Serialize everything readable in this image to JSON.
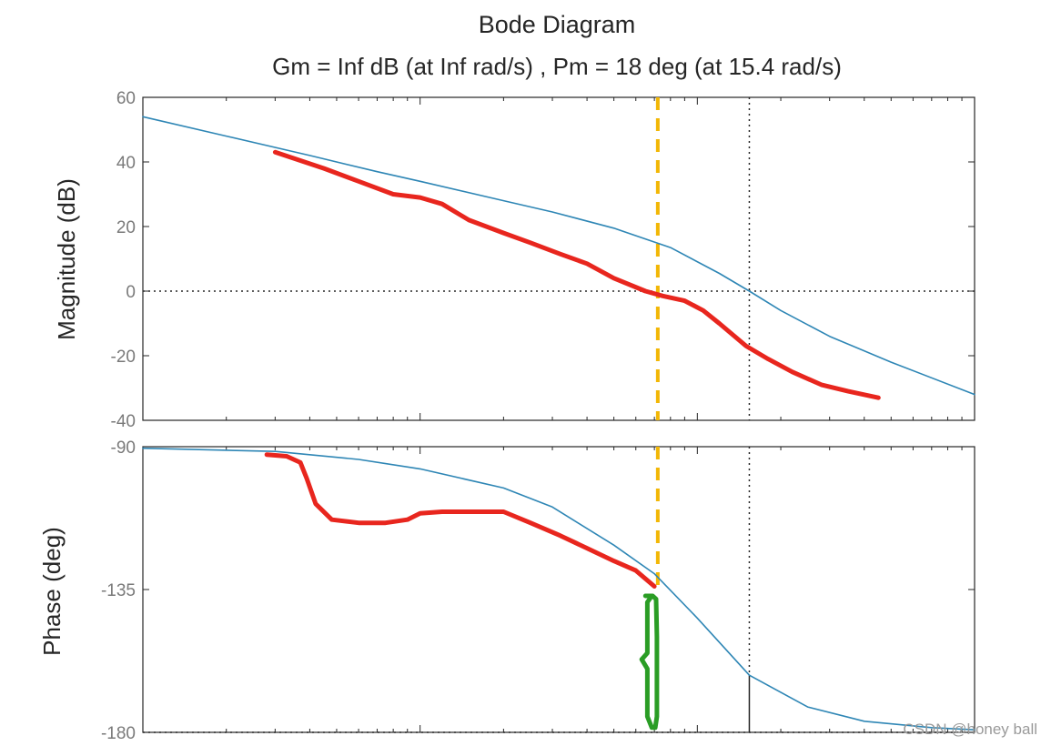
{
  "chart_data": [
    {
      "type": "line",
      "panel": "magnitude",
      "title": "Bode Diagram",
      "subtitle": "Gm = Inf dB (at Inf rad/s) ,  Pm = 18 deg (at 15.4 rad/s)",
      "xlabel": "",
      "ylabel": "Magnitude (dB)",
      "xscale": "log",
      "xlim": [
        0.1,
        100
      ],
      "ylim": [
        -40,
        60
      ],
      "yticks": [
        60,
        40,
        20,
        0,
        -20,
        -40
      ],
      "ytick_labels": [
        "60",
        "40",
        "20",
        "0",
        "-20",
        "-40"
      ],
      "series": [
        {
          "name": "Bode magnitude",
          "color": "#2e86b5",
          "x": [
            0.1,
            0.2,
            0.4,
            0.7,
            1,
            2,
            3,
            5,
            8,
            12,
            15.4,
            20,
            30,
            50,
            100
          ],
          "y": [
            54,
            48,
            42,
            37,
            34,
            28,
            24.5,
            19.5,
            13.5,
            5.5,
            0,
            -6,
            -14,
            -22,
            -32
          ]
        },
        {
          "name": "hand-drawn curve",
          "color": "#e8261e",
          "x": [
            0.3,
            0.45,
            0.6,
            0.8,
            1.0,
            1.2,
            1.5,
            2.0,
            2.5,
            3.2,
            4.0,
            5.0,
            6.5,
            7.5,
            9,
            10.5,
            12,
            15,
            18,
            22,
            28,
            35,
            45
          ],
          "y": [
            43,
            38,
            34,
            30,
            29,
            27,
            22,
            18,
            15,
            11.5,
            8.5,
            4,
            0,
            -1.5,
            -3,
            -6,
            -10,
            -17,
            -21,
            -25,
            -29,
            -31,
            -33
          ]
        }
      ],
      "annotations": [
        {
          "type": "hline",
          "y": 0,
          "style": "dotted",
          "color": "#262626"
        },
        {
          "type": "vline",
          "x": 15.4,
          "style": "dotted",
          "color": "#262626"
        },
        {
          "type": "vline",
          "x": 7.2,
          "style": "dashed",
          "color": "#f2b705"
        }
      ]
    },
    {
      "type": "line",
      "panel": "phase",
      "title": "",
      "xlabel": "",
      "ylabel": "Phase (deg)",
      "xscale": "log",
      "xlim": [
        0.1,
        100
      ],
      "ylim": [
        -180,
        -90
      ],
      "yticks": [
        -90,
        -135,
        -180
      ],
      "ytick_labels": [
        "-90",
        "-135",
        "-180"
      ],
      "series": [
        {
          "name": "Bode phase",
          "color": "#2e86b5",
          "x": [
            0.1,
            0.3,
            0.6,
            1,
            2,
            3,
            5,
            7,
            10,
            15.4,
            25,
            40,
            70,
            100
          ],
          "y": [
            -90.5,
            -91.5,
            -94,
            -97,
            -103,
            -109,
            -121,
            -130,
            -144,
            -162,
            -172,
            -176.5,
            -178.5,
            -179.2
          ]
        },
        {
          "name": "hand-drawn curve",
          "color": "#e8261e",
          "x": [
            0.28,
            0.33,
            0.37,
            0.39,
            0.42,
            0.48,
            0.6,
            0.75,
            0.9,
            1.0,
            1.2,
            1.5,
            2.0,
            2.5,
            3.2,
            4.0,
            5.0,
            6.0,
            7.0
          ],
          "y": [
            -92.5,
            -93,
            -95,
            -100,
            -108,
            -113,
            -114,
            -114,
            -113,
            -111,
            -110.5,
            -110.5,
            -110.5,
            -114,
            -118,
            -122,
            -126,
            -129,
            -134
          ]
        },
        {
          "name": "green bracket",
          "color": "#2a9d25",
          "x": [
            6.5,
            6.9,
            7.1,
            7.15,
            7.15,
            7.05,
            6.85,
            6.6,
            6.6,
            6.3,
            6.6,
            6.6,
            6.85
          ],
          "y": [
            -137,
            -137,
            -138,
            -150,
            -175,
            -178.5,
            -178.5,
            -175,
            -160,
            -157,
            -155,
            -139,
            -137
          ]
        }
      ],
      "annotations": [
        {
          "type": "hline",
          "y": -180,
          "style": "dotted",
          "color": "#262626"
        },
        {
          "type": "vline",
          "x": 15.4,
          "y_from": -90,
          "y_to": -162,
          "style": "dotted",
          "color": "#262626"
        },
        {
          "type": "vline",
          "x": 15.4,
          "y_from": -162,
          "y_to": -180,
          "style": "solid",
          "color": "#262626"
        },
        {
          "type": "vline",
          "x": 7.2,
          "y_from": -90,
          "y_to": -134,
          "style": "dashed",
          "color": "#f2b705"
        }
      ]
    }
  ],
  "watermark": "CSDN @honey ball"
}
